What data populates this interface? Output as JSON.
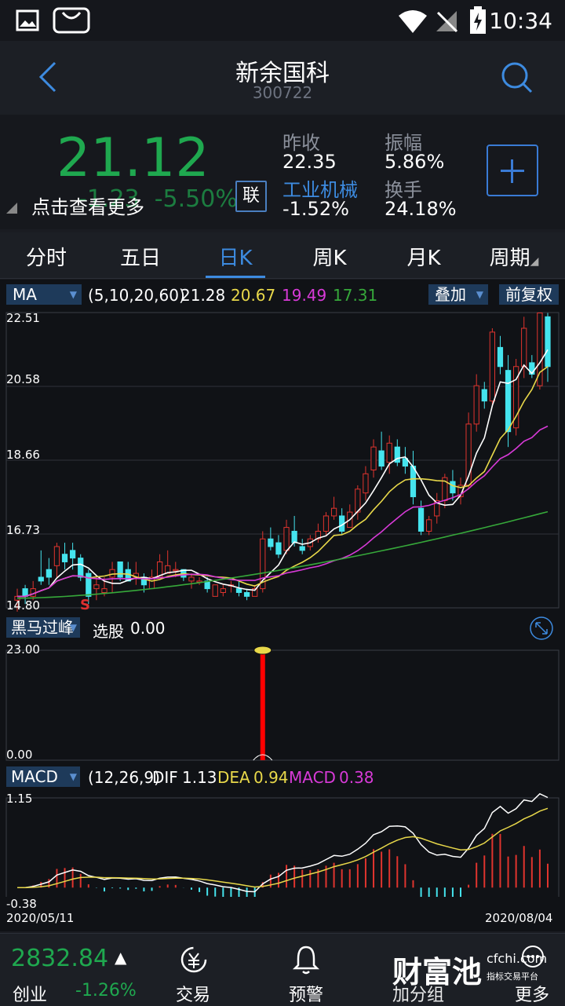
{
  "status": {
    "time": "10:34"
  },
  "header": {
    "title": "新余国科",
    "code": "300722"
  },
  "quote": {
    "price": "21.12",
    "change": "-1.23",
    "change_pct": "-5.50%",
    "tip": "点击查看更多",
    "lian": "联",
    "prev_close_label": "昨收",
    "prev_close": "22.35",
    "industry": "工业机械",
    "industry_chg": "-1.52%",
    "amp_label": "振幅",
    "amp": "5.86%",
    "turnover_label": "换手",
    "turnover": "24.18%"
  },
  "tabs": [
    "分时",
    "五日",
    "日K",
    "周K",
    "月K",
    "周期"
  ],
  "active_tab": "日K",
  "ma": {
    "label": "MA",
    "params": "(5,10,20,60)",
    "v1": "21.28",
    "v2": "20.67",
    "v3": "19.49",
    "v4": "17.31",
    "overlay": "叠加",
    "adjust": "前复权"
  },
  "indicator2": {
    "label": "黑马过峰",
    "text": "选股",
    "value": "0.00"
  },
  "macd": {
    "label": "MACD",
    "params": "(12,26,9)",
    "dif_label": "DIF",
    "dif": "1.13",
    "dea_label": "DEA",
    "dea": "0.94",
    "macd_label": "MACD",
    "macd": "0.38"
  },
  "axes": {
    "price_ticks": [
      "22.51",
      "20.58",
      "18.66",
      "16.73",
      "14.80"
    ],
    "sig_ticks": [
      "23.00",
      "0.00"
    ],
    "macd_ticks": [
      "1.15",
      "-0.38"
    ],
    "date_start": "2020/05/11",
    "date_end": "2020/08/04",
    "marker": "S"
  },
  "chart_data": {
    "type": "candlestick",
    "title": "",
    "ylim": [
      14.8,
      22.51
    ],
    "x_range": [
      "2020/05/11",
      "2020/08/04"
    ],
    "candles": [
      [
        15.0,
        15.3,
        14.7,
        15.1
      ],
      [
        15.3,
        15.4,
        14.9,
        15.1
      ],
      [
        15.1,
        15.5,
        15.0,
        15.3
      ],
      [
        15.6,
        16.3,
        15.4,
        15.5
      ],
      [
        15.8,
        16.1,
        15.4,
        15.6
      ],
      [
        15.9,
        16.5,
        15.6,
        16.4
      ],
      [
        16.2,
        16.5,
        15.8,
        16.0
      ],
      [
        16.3,
        16.5,
        15.8,
        16.1
      ],
      [
        16.1,
        16.2,
        15.5,
        15.6
      ],
      [
        15.7,
        15.8,
        14.9,
        15.1
      ],
      [
        15.3,
        15.6,
        15.0,
        15.4
      ],
      [
        15.2,
        15.6,
        15.1,
        15.3
      ],
      [
        15.6,
        16.0,
        15.2,
        15.8
      ],
      [
        16.0,
        16.0,
        15.5,
        15.6
      ],
      [
        15.8,
        16.0,
        15.5,
        15.5
      ],
      [
        15.6,
        16.0,
        15.4,
        15.7
      ],
      [
        15.6,
        15.7,
        15.2,
        15.4
      ],
      [
        15.3,
        15.8,
        15.3,
        15.6
      ],
      [
        15.6,
        16.2,
        15.6,
        16.0
      ],
      [
        15.7,
        16.3,
        15.7,
        15.9
      ],
      [
        15.8,
        16.0,
        15.6,
        15.8
      ],
      [
        15.8,
        15.8,
        15.5,
        15.6
      ],
      [
        15.5,
        15.7,
        15.3,
        15.6
      ],
      [
        15.5,
        15.6,
        15.4,
        15.5
      ],
      [
        15.5,
        15.6,
        15.2,
        15.3
      ],
      [
        15.1,
        15.4,
        15.1,
        15.4
      ],
      [
        15.2,
        15.4,
        15.1,
        15.3
      ],
      [
        15.4,
        15.5,
        15.2,
        15.4
      ],
      [
        15.3,
        15.5,
        15.1,
        15.2
      ],
      [
        15.2,
        15.3,
        15.0,
        15.1
      ],
      [
        15.1,
        15.4,
        15.1,
        15.3
      ],
      [
        15.3,
        16.8,
        15.2,
        16.6
      ],
      [
        16.6,
        16.9,
        16.3,
        16.4
      ],
      [
        16.5,
        16.7,
        16.1,
        16.2
      ],
      [
        16.3,
        17.1,
        16.2,
        16.9
      ],
      [
        16.8,
        17.2,
        16.4,
        16.5
      ],
      [
        16.4,
        16.6,
        16.2,
        16.3
      ],
      [
        16.4,
        16.7,
        16.3,
        16.6
      ],
      [
        16.6,
        17.0,
        16.5,
        16.8
      ],
      [
        16.8,
        17.3,
        16.7,
        17.2
      ],
      [
        17.2,
        17.7,
        17.1,
        17.4
      ],
      [
        17.2,
        17.4,
        16.7,
        16.8
      ],
      [
        16.9,
        17.5,
        16.9,
        17.3
      ],
      [
        17.3,
        18.0,
        17.1,
        17.9
      ],
      [
        17.8,
        18.5,
        17.6,
        18.3
      ],
      [
        18.4,
        19.2,
        18.2,
        19.0
      ],
      [
        18.9,
        19.4,
        18.4,
        18.5
      ],
      [
        18.6,
        19.3,
        18.3,
        19.1
      ],
      [
        19.0,
        19.2,
        18.5,
        18.6
      ],
      [
        18.7,
        19.0,
        18.3,
        18.5
      ],
      [
        18.5,
        18.9,
        17.5,
        17.7
      ],
      [
        17.4,
        17.6,
        16.7,
        16.8
      ],
      [
        16.8,
        17.2,
        16.7,
        17.1
      ],
      [
        17.2,
        17.8,
        17.0,
        17.6
      ],
      [
        17.6,
        18.3,
        17.4,
        18.2
      ],
      [
        18.1,
        18.4,
        17.6,
        17.8
      ],
      [
        17.7,
        18.2,
        17.5,
        18.0
      ],
      [
        18.0,
        19.9,
        17.9,
        19.6
      ],
      [
        19.6,
        20.9,
        19.4,
        20.6
      ],
      [
        20.5,
        20.7,
        20.0,
        20.2
      ],
      [
        20.2,
        22.1,
        20.1,
        22.0
      ],
      [
        21.6,
        21.9,
        20.9,
        21.1
      ],
      [
        21.0,
        21.4,
        19.0,
        19.4
      ],
      [
        19.5,
        21.3,
        19.3,
        21.1
      ],
      [
        21.1,
        22.4,
        20.8,
        22.1
      ],
      [
        21.2,
        21.4,
        20.8,
        20.9
      ],
      [
        20.6,
        22.5,
        20.5,
        22.5
      ],
      [
        22.4,
        22.5,
        20.7,
        21.1
      ]
    ],
    "series": [
      {
        "name": "MA5",
        "color": "#ffffff"
      },
      {
        "name": "MA10",
        "color": "#e8d84a"
      },
      {
        "name": "MA20",
        "color": "#d83ad8"
      },
      {
        "name": "MA60",
        "color": "#36a83a"
      }
    ],
    "signal": {
      "ylim": [
        0,
        23
      ],
      "spike_index": 31,
      "spike_value": 23
    },
    "macd_ylim": [
      -0.38,
      1.15
    ]
  },
  "bottom": {
    "index_value": "2832.84",
    "index_name": "创业",
    "index_chg": "-1.26%",
    "trade": "交易",
    "alert": "预警",
    "add_group": "加分组",
    "more": "更多",
    "watermark": "财富池",
    "watermark_domain": "cfchi.com",
    "watermark_sub": "指标交易平台"
  }
}
